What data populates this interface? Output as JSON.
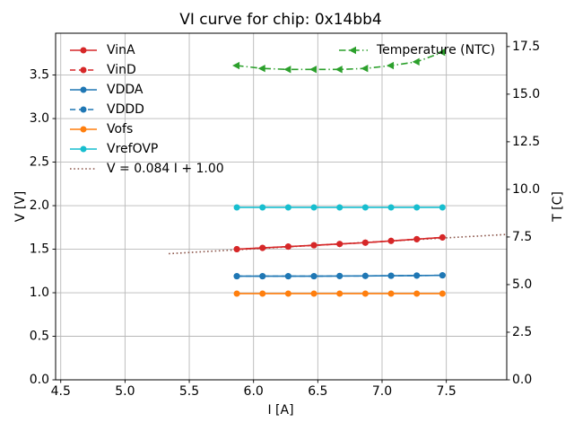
{
  "chart_data": {
    "type": "line",
    "title": "VI curve for chip: 0x14bb4",
    "xlabel": "I [A]",
    "ylabel_left": "V [V]",
    "ylabel_right": "T [C]",
    "xlim": [
      4.46,
      7.97
    ],
    "ylim_left": [
      0.0,
      3.98
    ],
    "ylim_right": [
      0.0,
      18.2
    ],
    "xticks": [
      4.5,
      5.0,
      5.5,
      6.0,
      6.5,
      7.0,
      7.5
    ],
    "yticks_left": [
      0.0,
      0.5,
      1.0,
      1.5,
      2.0,
      2.5,
      3.0,
      3.5
    ],
    "yticks_right": [
      0.0,
      2.5,
      5.0,
      7.5,
      10.0,
      12.5,
      15.0,
      17.5
    ],
    "grid": true,
    "x": [
      5.87,
      6.07,
      6.27,
      6.47,
      6.67,
      6.87,
      7.07,
      7.27,
      7.47
    ],
    "series": [
      {
        "name": "VinA",
        "axis": "left",
        "color": "#d62728",
        "style": "solid",
        "marker": "circle",
        "values": [
          1.5,
          1.515,
          1.53,
          1.545,
          1.56,
          1.575,
          1.595,
          1.615,
          1.635
        ]
      },
      {
        "name": "VinD",
        "axis": "left",
        "color": "#d62728",
        "style": "dashed",
        "marker": "circle",
        "values": [
          1.5,
          1.515,
          1.53,
          1.545,
          1.56,
          1.575,
          1.595,
          1.615,
          1.635
        ]
      },
      {
        "name": "VDDA",
        "axis": "left",
        "color": "#1f77b4",
        "style": "solid",
        "marker": "circle",
        "values": [
          1.19,
          1.19,
          1.19,
          1.19,
          1.192,
          1.193,
          1.195,
          1.197,
          1.2
        ]
      },
      {
        "name": "VDDD",
        "axis": "left",
        "color": "#1f77b4",
        "style": "dashed",
        "marker": "circle",
        "values": [
          1.19,
          1.19,
          1.19,
          1.19,
          1.192,
          1.193,
          1.195,
          1.197,
          1.2
        ]
      },
      {
        "name": "Vofs",
        "axis": "left",
        "color": "#ff7f0e",
        "style": "solid",
        "marker": "circle",
        "values": [
          0.99,
          0.99,
          0.99,
          0.99,
          0.99,
          0.99,
          0.99,
          0.99,
          0.99
        ]
      },
      {
        "name": "VrefOVP",
        "axis": "left",
        "color": "#17becf",
        "style": "solid",
        "marker": "circle",
        "values": [
          1.98,
          1.98,
          1.98,
          1.98,
          1.98,
          1.98,
          1.98,
          1.98,
          1.98
        ]
      },
      {
        "name": "Temperature (NTC)",
        "axis": "right",
        "color": "#2ca02c",
        "style": "dashdot",
        "marker": "triangle-left",
        "values": [
          16.5,
          16.35,
          16.3,
          16.3,
          16.3,
          16.35,
          16.5,
          16.7,
          17.2
        ]
      }
    ],
    "fit_line": {
      "label": "V = 0.084 I + 1.00",
      "color": "#8c564b",
      "style": "dotted",
      "slope": 0.084,
      "intercept": 1.0,
      "x_range": [
        5.34,
        7.97
      ]
    },
    "legend_left_labels": [
      "VinA",
      "VinD",
      "VDDA",
      "VDDD",
      "Vofs",
      "VrefOVP",
      "V = 0.084 I + 1.00"
    ],
    "legend_right_labels": [
      "Temperature (NTC)"
    ],
    "colors": {
      "grid": "#b8b8b8",
      "spine": "#000000"
    }
  }
}
